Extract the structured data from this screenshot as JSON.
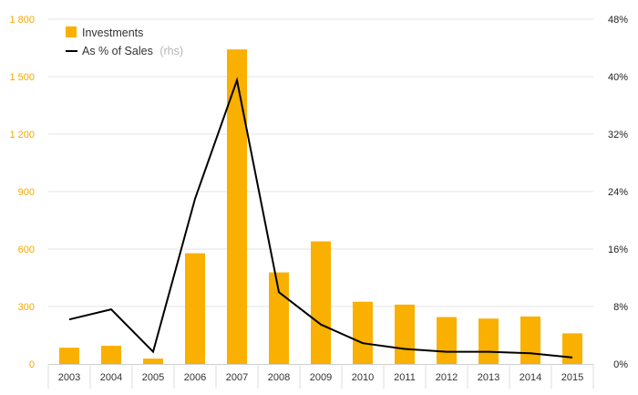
{
  "chart_data": {
    "type": "bar",
    "categories": [
      "2003",
      "2004",
      "2005",
      "2006",
      "2007",
      "2008",
      "2009",
      "2010",
      "2011",
      "2012",
      "2013",
      "2014",
      "2015"
    ],
    "series": [
      {
        "name": "Investments",
        "type": "bar",
        "axis": "left",
        "color": "#f9b000",
        "values": [
          85,
          95,
          28,
          578,
          1642,
          478,
          640,
          325,
          310,
          245,
          237,
          248,
          160
        ]
      },
      {
        "name": "As % of Sales",
        "type": "line",
        "axis": "right",
        "color": "#000000",
        "values": [
          6.2,
          7.6,
          1.7,
          23.0,
          39.5,
          10.0,
          5.5,
          2.9,
          2.1,
          1.7,
          1.7,
          1.5,
          0.9
        ]
      }
    ],
    "legend": {
      "position": "top-left",
      "items": [
        {
          "label": "Investments",
          "suffix": ""
        },
        {
          "label": "As % of Sales",
          "suffix": "(rhs)"
        }
      ]
    },
    "y_left": {
      "ylim": [
        0,
        1800
      ],
      "ticks": [
        0,
        300,
        600,
        900,
        1200,
        1500,
        1800
      ],
      "tick_labels": [
        "0",
        "300",
        "600",
        "900",
        "1 200",
        "1 500",
        "1 800"
      ],
      "color": "#f2a900"
    },
    "y_right": {
      "ylim": [
        0,
        48
      ],
      "ticks": [
        0,
        8,
        16,
        24,
        32,
        40,
        48
      ],
      "tick_labels": [
        "0%",
        "8%",
        "16%",
        "24%",
        "32%",
        "40%",
        "48%"
      ]
    },
    "grid": true
  }
}
